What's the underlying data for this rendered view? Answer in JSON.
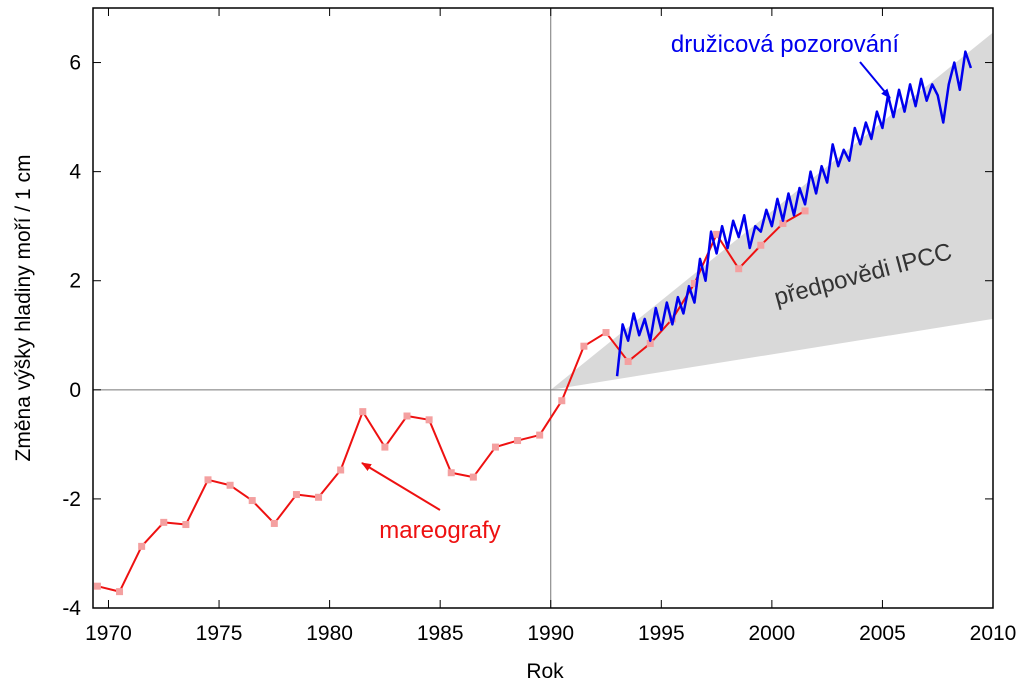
{
  "chart_data": {
    "type": "line",
    "xlabel": "Rok",
    "ylabel": "Změna výšky hladiny moří / 1 cm",
    "xlim": [
      1969.3,
      2010
    ],
    "ylim": [
      -4,
      7
    ],
    "xticks": [
      1970,
      1975,
      1980,
      1985,
      1990,
      1995,
      2000,
      2005,
      2010
    ],
    "yticks": [
      -4,
      -2,
      0,
      2,
      4,
      6
    ],
    "reference_x": 1990,
    "reference_y": 0,
    "band": {
      "name": "předpovědi IPCC",
      "color": "#d9d9d9",
      "x": [
        1990,
        2010
      ],
      "upper": [
        0,
        6.55
      ],
      "lower": [
        0,
        1.3
      ]
    },
    "series": [
      {
        "name": "mareografy",
        "color": "#ee1111",
        "marker_color": "#f4a0a0",
        "x": [
          1969.5,
          1970.5,
          1971.5,
          1972.5,
          1973.5,
          1974.5,
          1975.5,
          1976.5,
          1977.5,
          1978.5,
          1979.5,
          1980.5,
          1981.5,
          1982.5,
          1983.5,
          1984.5,
          1985.5,
          1986.5,
          1987.5,
          1988.5,
          1989.5,
          1990.5,
          1991.5,
          1992.5,
          1993.5,
          1994.5,
          1995.5,
          1996.5,
          1997.5,
          1998.5,
          1999.5,
          2000.5,
          2001.5
        ],
        "values": [
          -3.6,
          -3.7,
          -2.87,
          -2.43,
          -2.47,
          -1.65,
          -1.75,
          -2.03,
          -2.45,
          -1.92,
          -1.97,
          -1.47,
          -0.4,
          -1.05,
          -0.48,
          -0.55,
          -1.52,
          -1.6,
          -1.05,
          -0.93,
          -0.83,
          -0.2,
          0.8,
          1.05,
          0.52,
          0.85,
          1.3,
          1.95,
          2.85,
          2.22,
          2.65,
          3.05,
          3.28
        ]
      },
      {
        "name": "družicová pozorování",
        "color": "#0000ee",
        "x": [
          1993.0,
          1993.25,
          1993.5,
          1993.75,
          1994.0,
          1994.25,
          1994.5,
          1994.75,
          1995.0,
          1995.25,
          1995.5,
          1995.75,
          1996.0,
          1996.25,
          1996.5,
          1996.75,
          1997.0,
          1997.25,
          1997.5,
          1997.75,
          1998.0,
          1998.25,
          1998.5,
          1998.75,
          1999.0,
          1999.25,
          1999.5,
          1999.75,
          2000.0,
          2000.25,
          2000.5,
          2000.75,
          2001.0,
          2001.25,
          2001.5,
          2001.75,
          2002.0,
          2002.25,
          2002.5,
          2002.75,
          2003.0,
          2003.25,
          2003.5,
          2003.75,
          2004.0,
          2004.25,
          2004.5,
          2004.75,
          2005.0,
          2005.25,
          2005.5,
          2005.75,
          2006.0,
          2006.25,
          2006.5,
          2006.75,
          2007.0,
          2007.25,
          2007.5,
          2007.75,
          2008.0,
          2008.25,
          2008.5,
          2008.75,
          2009.0
        ],
        "values": [
          0.25,
          1.2,
          0.9,
          1.4,
          1.0,
          1.3,
          0.9,
          1.5,
          1.1,
          1.6,
          1.2,
          1.7,
          1.4,
          1.9,
          1.6,
          2.4,
          2.0,
          2.9,
          2.5,
          3.0,
          2.6,
          3.1,
          2.8,
          3.2,
          2.6,
          3.0,
          2.9,
          3.3,
          3.0,
          3.5,
          3.1,
          3.6,
          3.2,
          3.7,
          3.4,
          4.0,
          3.6,
          4.1,
          3.8,
          4.5,
          4.1,
          4.4,
          4.2,
          4.8,
          4.5,
          4.9,
          4.6,
          5.1,
          4.8,
          5.4,
          5.0,
          5.5,
          5.1,
          5.6,
          5.2,
          5.7,
          5.3,
          5.6,
          5.4,
          4.9,
          5.6,
          6.0,
          5.5,
          6.2,
          5.9
        ]
      }
    ]
  }
}
